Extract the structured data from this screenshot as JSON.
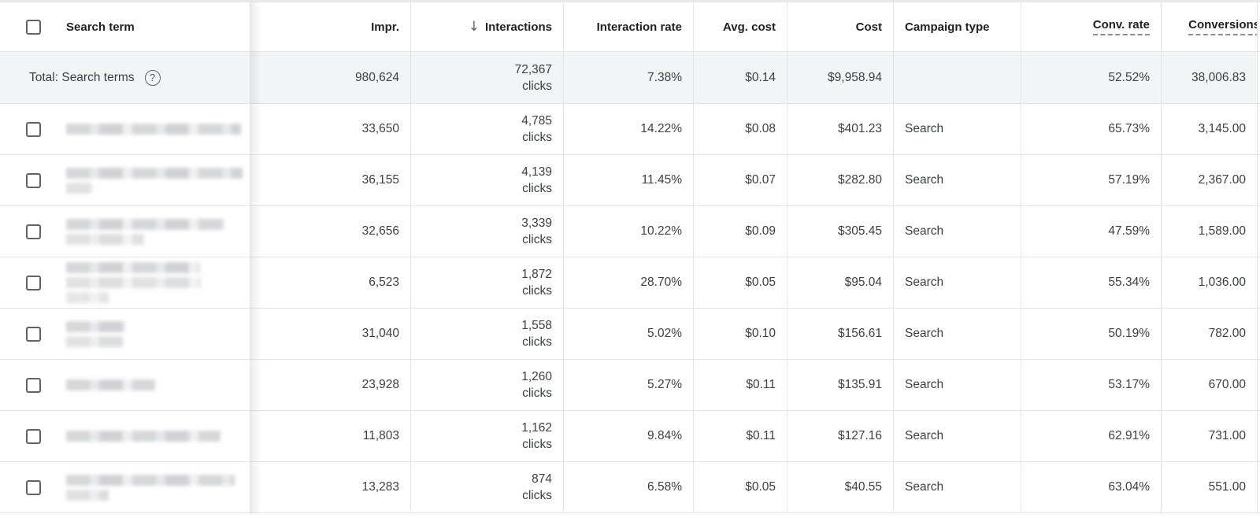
{
  "table": {
    "sort_icon": "↓",
    "help_glyph": "?",
    "clicks_unit": "clicks",
    "columns": [
      {
        "id": "search_term",
        "label": "Search term"
      },
      {
        "id": "impressions",
        "label": "Impr."
      },
      {
        "id": "interactions",
        "label": "Interactions",
        "sorted": "descending"
      },
      {
        "id": "interaction_rate",
        "label": "Interaction rate"
      },
      {
        "id": "avg_cost",
        "label": "Avg. cost"
      },
      {
        "id": "cost",
        "label": "Cost"
      },
      {
        "id": "campaign_type",
        "label": "Campaign type"
      },
      {
        "id": "conv_rate",
        "label": "Conv. rate",
        "dotted_underline": true
      },
      {
        "id": "conversions",
        "label": "Conversions",
        "dotted_underline": true
      }
    ],
    "total": {
      "label": "Total: Search terms",
      "impr": "980,624",
      "interactions": "72,367",
      "interaction_rate": "7.38%",
      "avg_cost": "$0.14",
      "cost": "$9,958.94",
      "campaign_type": "",
      "conv_rate": "52.52%",
      "conversions": "38,006.83"
    },
    "rows": [
      {
        "impr": "33,650",
        "interactions": "4,785",
        "interaction_rate": "14.22%",
        "avg_cost": "$0.08",
        "cost": "$401.23",
        "campaign_type": "Search",
        "conv_rate": "65.73%",
        "conversions": "3,145.00",
        "redacted_term_lines": [
          222
        ]
      },
      {
        "impr": "36,155",
        "interactions": "4,139",
        "interaction_rate": "11.45%",
        "avg_cost": "$0.07",
        "cost": "$282.80",
        "campaign_type": "Search",
        "conv_rate": "57.19%",
        "conversions": "2,367.00",
        "redacted_term_lines": [
          224,
          34
        ]
      },
      {
        "impr": "32,656",
        "interactions": "3,339",
        "interaction_rate": "10.22%",
        "avg_cost": "$0.09",
        "cost": "$305.45",
        "campaign_type": "Search",
        "conv_rate": "47.59%",
        "conversions": "1,589.00",
        "redacted_term_lines": [
          201,
          99
        ]
      },
      {
        "impr": "6,523",
        "interactions": "1,872",
        "interaction_rate": "28.70%",
        "avg_cost": "$0.05",
        "cost": "$95.04",
        "campaign_type": "Search",
        "conv_rate": "55.34%",
        "conversions": "1,036.00",
        "redacted_term_lines": [
          170,
          171,
          54
        ]
      },
      {
        "impr": "31,040",
        "interactions": "1,558",
        "interaction_rate": "5.02%",
        "avg_cost": "$0.10",
        "cost": "$156.61",
        "campaign_type": "Search",
        "conv_rate": "50.19%",
        "conversions": "782.00",
        "redacted_term_lines": [
          76,
          72
        ]
      },
      {
        "impr": "23,928",
        "interactions": "1,260",
        "interaction_rate": "5.27%",
        "avg_cost": "$0.11",
        "cost": "$135.91",
        "campaign_type": "Search",
        "conv_rate": "53.17%",
        "conversions": "670.00",
        "redacted_term_lines": [
          113
        ]
      },
      {
        "impr": "11,803",
        "interactions": "1,162",
        "interaction_rate": "9.84%",
        "avg_cost": "$0.11",
        "cost": "$127.16",
        "campaign_type": "Search",
        "conv_rate": "62.91%",
        "conversions": "731.00",
        "redacted_term_lines": [
          196
        ]
      },
      {
        "impr": "13,283",
        "interactions": "874",
        "interaction_rate": "6.58%",
        "avg_cost": "$0.05",
        "cost": "$40.55",
        "campaign_type": "Search",
        "conv_rate": "63.04%",
        "conversions": "551.00",
        "redacted_term_lines": [
          214,
          54
        ]
      }
    ],
    "colors": {
      "cell_text": "#3c4043",
      "header_text": "#202124",
      "muted_gray": "#5f6368",
      "border": "#e3e4e6",
      "total_row_bg": "#f3f4f6"
    }
  }
}
